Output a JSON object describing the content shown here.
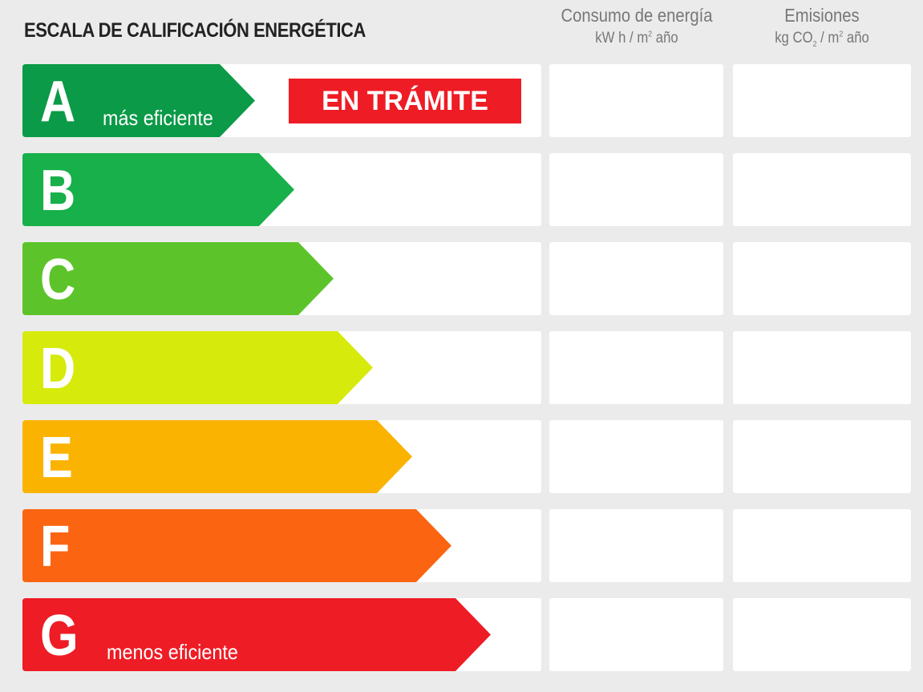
{
  "title": "ESCALA DE CALIFICACIÓN ENERGÉTICA",
  "columns": {
    "energy": {
      "title": "Consumo de energía",
      "unit_pre": "kW h / m",
      "unit_sup": "2",
      "unit_post": " año"
    },
    "emissions": {
      "title": "Emisiones",
      "unit_pre": "kg CO",
      "unit_sub": "2",
      "unit_mid": " / m",
      "unit_sup": "2",
      "unit_post": " año"
    }
  },
  "ratings": [
    {
      "letter": "A",
      "note": "más eficiente",
      "color": "#0b9a47"
    },
    {
      "letter": "B",
      "note": "",
      "color": "#17b04a"
    },
    {
      "letter": "C",
      "note": "",
      "color": "#5cc42a"
    },
    {
      "letter": "D",
      "note": "",
      "color": "#d6ea0c"
    },
    {
      "letter": "E",
      "note": "",
      "color": "#fbb301"
    },
    {
      "letter": "F",
      "note": "",
      "color": "#fb6512"
    },
    {
      "letter": "G",
      "note": "menos eficiente",
      "color": "#ee1c25"
    }
  ],
  "banner": {
    "text": "EN TRÁMITE",
    "color": "#ee1c24"
  }
}
